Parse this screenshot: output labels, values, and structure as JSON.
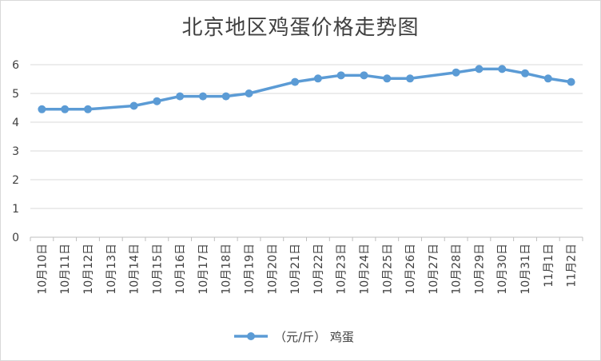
{
  "chart_data": {
    "type": "line",
    "title": "北京地区鸡蛋价格走势图",
    "xlabel": "",
    "ylabel": "",
    "ylim": [
      0,
      6
    ],
    "yticks": [
      0,
      1,
      2,
      3,
      4,
      5,
      6
    ],
    "grid": true,
    "legend_position": "bottom",
    "categories": [
      "10月10日",
      "10月11日",
      "10月12日",
      "10月13日",
      "10月14日",
      "10月15日",
      "10月16日",
      "10月17日",
      "10月18日",
      "10月19日",
      "10月20日",
      "10月21日",
      "10月22日",
      "10月23日",
      "10月24日",
      "10月25日",
      "10月26日",
      "10月27日",
      "10月28日",
      "10月29日",
      "10月30日",
      "10月31日",
      "11月1日",
      "11月2日"
    ],
    "series": [
      {
        "name": "（元/斤） 鸡蛋",
        "color": "#5b9bd5",
        "values": [
          4.45,
          4.45,
          4.45,
          null,
          4.57,
          4.73,
          4.9,
          4.9,
          4.9,
          5.0,
          null,
          5.4,
          5.52,
          5.63,
          5.63,
          5.52,
          5.52,
          null,
          5.73,
          5.85,
          5.85,
          5.7,
          5.52,
          5.4
        ]
      }
    ]
  }
}
